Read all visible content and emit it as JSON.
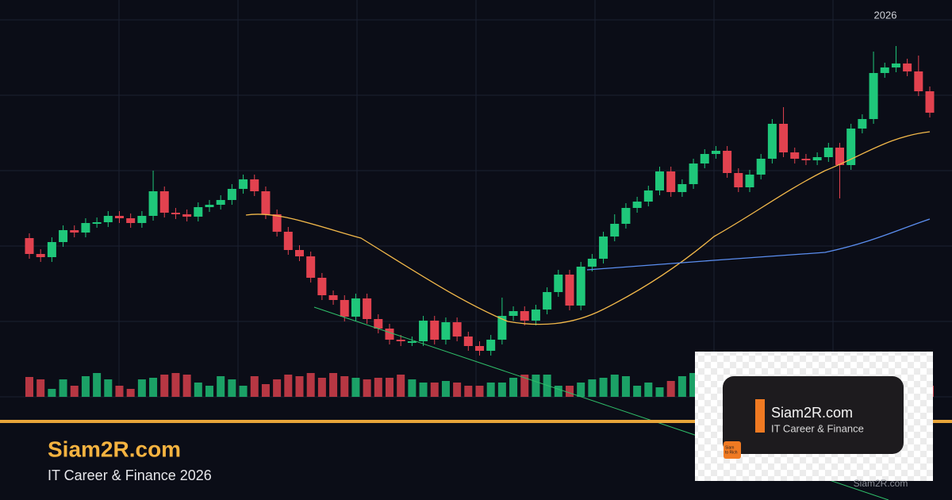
{
  "chart_data": {
    "type": "candlestick",
    "year_label": "2026",
    "up_color": "#1fc77a",
    "down_color": "#e2424f",
    "open": [
      330,
      310,
      306,
      325,
      340,
      337,
      349,
      350,
      358,
      355,
      349,
      358,
      389,
      362,
      360,
      357,
      369,
      372,
      378,
      392,
      404,
      389,
      360,
      338,
      315,
      307,
      280,
      258,
      252,
      231,
      254,
      228,
      216,
      202,
      200,
      200,
      226,
      202,
      224,
      206,
      194,
      188,
      202,
      232,
      238,
      226,
      240,
      262,
      284,
      245,
      294,
      304,
      332,
      348,
      368,
      376,
      390,
      414,
      388,
      398,
      424,
      436,
      440,
      412,
      394,
      410,
      430,
      474,
      438,
      430,
      428,
      432,
      444,
      422,
      468,
      480,
      538,
      545,
      550,
      540,
      515
    ],
    "close": [
      310,
      306,
      325,
      340,
      337,
      349,
      350,
      358,
      355,
      349,
      358,
      389,
      362,
      360,
      357,
      369,
      372,
      378,
      392,
      404,
      389,
      360,
      338,
      315,
      307,
      280,
      258,
      252,
      231,
      254,
      228,
      216,
      202,
      200,
      200,
      226,
      202,
      224,
      206,
      194,
      188,
      202,
      232,
      238,
      226,
      240,
      262,
      284,
      245,
      294,
      304,
      332,
      348,
      368,
      376,
      390,
      414,
      388,
      398,
      424,
      436,
      440,
      412,
      394,
      410,
      430,
      474,
      438,
      430,
      428,
      432,
      444,
      422,
      468,
      480,
      538,
      545,
      550,
      540,
      515,
      488
    ],
    "high": [
      336,
      316,
      331,
      346,
      346,
      355,
      356,
      364,
      364,
      361,
      364,
      415,
      395,
      368,
      366,
      375,
      378,
      384,
      398,
      410,
      410,
      395,
      366,
      344,
      321,
      313,
      286,
      264,
      258,
      260,
      260,
      234,
      222,
      208,
      206,
      232,
      232,
      230,
      230,
      212,
      200,
      208,
      255,
      244,
      244,
      246,
      268,
      290,
      290,
      300,
      310,
      338,
      360,
      374,
      382,
      396,
      420,
      420,
      404,
      430,
      442,
      446,
      446,
      418,
      416,
      436,
      480,
      495,
      444,
      436,
      438,
      450,
      450,
      474,
      486,
      565,
      551,
      572,
      556,
      560,
      521
    ],
    "low": [
      304,
      300,
      300,
      319,
      331,
      331,
      343,
      344,
      349,
      343,
      343,
      352,
      356,
      354,
      351,
      351,
      363,
      366,
      372,
      386,
      383,
      354,
      332,
      309,
      301,
      274,
      252,
      246,
      225,
      225,
      222,
      210,
      196,
      194,
      194,
      194,
      196,
      196,
      200,
      188,
      182,
      182,
      196,
      226,
      220,
      220,
      234,
      256,
      239,
      239,
      288,
      298,
      326,
      342,
      362,
      370,
      384,
      382,
      382,
      392,
      418,
      430,
      406,
      388,
      388,
      404,
      424,
      432,
      424,
      422,
      422,
      426,
      380,
      416,
      462,
      474,
      532,
      539,
      534,
      509,
      482
    ],
    "volume": [
      25,
      22,
      10,
      22,
      14,
      26,
      30,
      22,
      14,
      10,
      22,
      24,
      28,
      30,
      28,
      18,
      14,
      26,
      22,
      14,
      26,
      16,
      22,
      28,
      26,
      30,
      24,
      30,
      26,
      24,
      22,
      24,
      24,
      28,
      22,
      18,
      18,
      20,
      18,
      14,
      14,
      18,
      18,
      24,
      28,
      28,
      28,
      14,
      14,
      18,
      22,
      24,
      28,
      26,
      14,
      18,
      12,
      20,
      26,
      30,
      14,
      14,
      30,
      30,
      22,
      18,
      16,
      12,
      10,
      30,
      30,
      22,
      18,
      22,
      16,
      22,
      26,
      22,
      18,
      20,
      14
    ]
  },
  "brand": {
    "title": "Siam2R.com",
    "subtitle": "IT Career & Finance 2026",
    "watermark": "Siam2R.com"
  },
  "card": {
    "title": "Siam2R.com",
    "subtitle": "IT Career & Finance",
    "icon_lines": [
      "Siam",
      "to Rich"
    ]
  }
}
